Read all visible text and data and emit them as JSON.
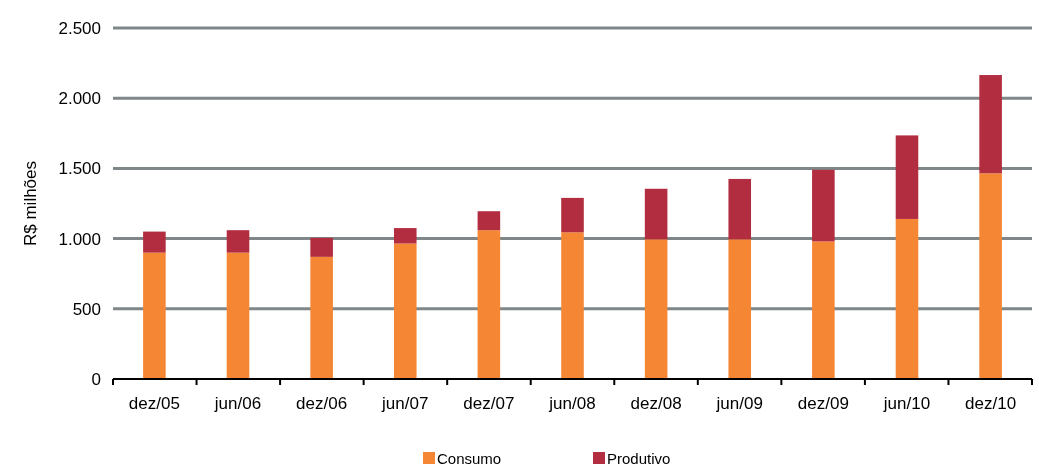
{
  "chart_data": {
    "type": "bar",
    "stacked": true,
    "ylabel": "R$ milhões",
    "categories": [
      "dez/05",
      "jun/06",
      "dez/06",
      "jun/07",
      "dez/07",
      "jun/08",
      "dez/08",
      "jun/09",
      "dez/09",
      "jun/10",
      "dez/10"
    ],
    "series": [
      {
        "name": "Consumo",
        "color": "#f58634",
        "values": [
          900,
          900,
          870,
          965,
          1060,
          1045,
          995,
          995,
          980,
          1140,
          1465
        ]
      },
      {
        "name": "Produtivo",
        "color": "#b22d40",
        "values": [
          150,
          160,
          135,
          110,
          135,
          245,
          360,
          430,
          510,
          595,
          700
        ]
      }
    ],
    "ylim": [
      0,
      2500
    ],
    "yticks": [
      0,
      500,
      {
        "value": 1000,
        "label": "1.000"
      },
      {
        "value": 1500,
        "label": "1.500"
      },
      {
        "value": 2000,
        "label": "2.000"
      },
      {
        "value": 2500,
        "label": "2.500"
      }
    ],
    "grid": "y",
    "legend": "bottom"
  }
}
